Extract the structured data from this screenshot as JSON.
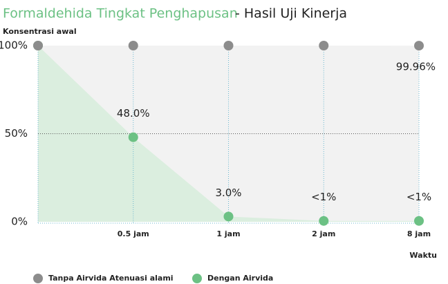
{
  "chart_data": {
    "type": "line",
    "title": "Formaldehida Tingkat Penghapusan",
    "subtitle": "- Hasil Uji Kinerja",
    "y_label": "Konsentrasi awal",
    "x_label": "Waktu",
    "categories": [
      null,
      "0.5 jam",
      "1 jam",
      "2 jam",
      "8 jam"
    ],
    "series": [
      {
        "name": "Tanpa Airvida Atenuasi alami",
        "color": "#8c8c8c",
        "fill": "#f2f2f2",
        "values": [
          100,
          100,
          100,
          100,
          99.96
        ],
        "value_labels": [
          null,
          null,
          null,
          null,
          "99.96%"
        ]
      },
      {
        "name": "Dengan Airvida",
        "color": "#6cc184",
        "fill": "#dbeedf",
        "values": [
          100,
          48,
          3,
          0.5,
          0.5
        ],
        "value_labels": [
          null,
          "48.0%",
          "3.0%",
          "<1%",
          "<1%"
        ]
      }
    ],
    "ylim": [
      0,
      100
    ],
    "yticks": [
      {
        "value": 0,
        "label": "0%"
      },
      {
        "value": 50,
        "label": "50%"
      },
      {
        "value": 100,
        "label": "100%"
      }
    ],
    "grid": true
  }
}
